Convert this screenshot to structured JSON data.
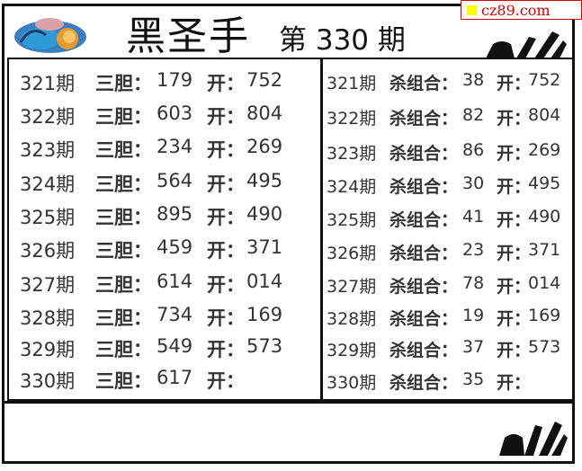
{
  "header": {
    "title": "黑圣手",
    "issue_prefix": "第",
    "issue_number": "330",
    "issue_suffix": "期",
    "site_badge": "cz89.com",
    "logo_icon": "colorful-emblem-logo",
    "hand_icon": "ok-hand-gesture"
  },
  "left_table": {
    "label": "三胆：",
    "open_label": "开：",
    "rows": [
      {
        "period": "321期",
        "pick": "179",
        "open": "752"
      },
      {
        "period": "322期",
        "pick": "603",
        "open": "804"
      },
      {
        "period": "323期",
        "pick": "234",
        "open": "269"
      },
      {
        "period": "324期",
        "pick": "564",
        "open": "495"
      },
      {
        "period": "325期",
        "pick": "895",
        "open": "490"
      },
      {
        "period": "326期",
        "pick": "459",
        "open": "371"
      },
      {
        "period": "327期",
        "pick": "614",
        "open": "014"
      },
      {
        "period": "328期",
        "pick": "734",
        "open": "169"
      },
      {
        "period": "329期",
        "pick": "549",
        "open": "573"
      },
      {
        "period": "330期",
        "pick": "617",
        "open": ""
      }
    ]
  },
  "right_table": {
    "label": "杀组合：",
    "open_label": "开：",
    "rows": [
      {
        "period": "321期",
        "pick": "38",
        "open": "752"
      },
      {
        "period": "322期",
        "pick": "82",
        "open": "804"
      },
      {
        "period": "323期",
        "pick": "86",
        "open": "269"
      },
      {
        "period": "324期",
        "pick": "30",
        "open": "495"
      },
      {
        "period": "325期",
        "pick": "41",
        "open": "490"
      },
      {
        "period": "326期",
        "pick": "23",
        "open": "371"
      },
      {
        "period": "327期",
        "pick": "78",
        "open": "014"
      },
      {
        "period": "328期",
        "pick": "19",
        "open": "169"
      },
      {
        "period": "329期",
        "pick": "37",
        "open": "573"
      },
      {
        "period": "330期",
        "pick": "35",
        "open": ""
      }
    ]
  }
}
